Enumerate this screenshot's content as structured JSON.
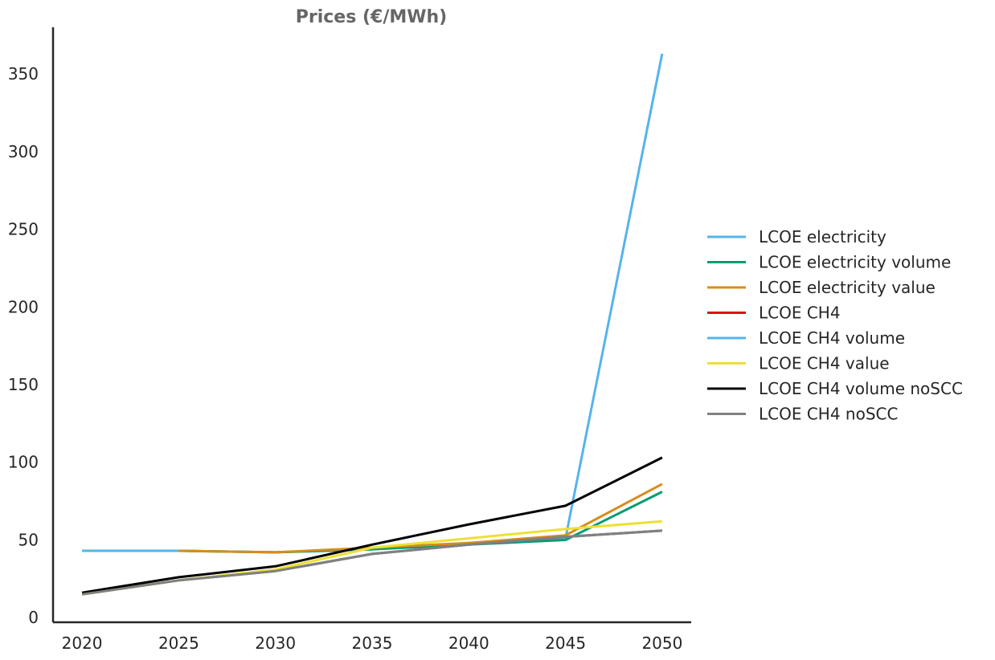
{
  "chart_data": {
    "type": "line",
    "title": "Prices (€/MWh)",
    "xlabel": "",
    "ylabel": "",
    "x": [
      2020,
      2025,
      2030,
      2035,
      2040,
      2045,
      2050
    ],
    "x_ticks": [
      "2020",
      "2025",
      "2030",
      "2035",
      "2040",
      "2045",
      "2050"
    ],
    "y_ticks": [
      "0",
      "50",
      "100",
      "150",
      "200",
      "250",
      "300",
      "350"
    ],
    "y_tick_values": [
      0,
      50,
      100,
      150,
      200,
      250,
      300,
      350
    ],
    "xlim": [
      2018.5,
      2051.5
    ],
    "ylim": [
      -3,
      380
    ],
    "grid": false,
    "legend_position": "right",
    "series": [
      {
        "name": "LCOE electricity",
        "color": "#56B4E9",
        "values": [
          43,
          43,
          42,
          44,
          48,
          51,
          363
        ]
      },
      {
        "name": "LCOE electricity volume",
        "color": "#009E73",
        "values": [
          null,
          43,
          42,
          44,
          47,
          50,
          81
        ]
      },
      {
        "name": "LCOE electricity value",
        "color": "#D98C1A",
        "values": [
          null,
          43,
          42,
          45,
          48,
          53,
          86
        ]
      },
      {
        "name": "LCOE CH4",
        "color": "#E01010",
        "values": [
          15,
          24,
          30,
          41,
          47,
          52,
          56
        ]
      },
      {
        "name": "LCOE CH4 volume",
        "color": "#56B4E9",
        "values": [
          15,
          24,
          30,
          41,
          47,
          52,
          56
        ]
      },
      {
        "name": "LCOE CH4 value",
        "color": "#ECE133",
        "values": [
          15,
          24,
          31,
          45,
          51,
          57,
          62
        ]
      },
      {
        "name": "LCOE CH4 volume noSCC",
        "color": "#000000",
        "values": [
          16,
          26,
          33,
          47,
          60,
          72,
          103
        ]
      },
      {
        "name": "LCOE CH4 noSCC",
        "color": "#808080",
        "values": [
          15,
          24,
          30,
          41,
          47,
          52,
          56
        ]
      }
    ]
  }
}
